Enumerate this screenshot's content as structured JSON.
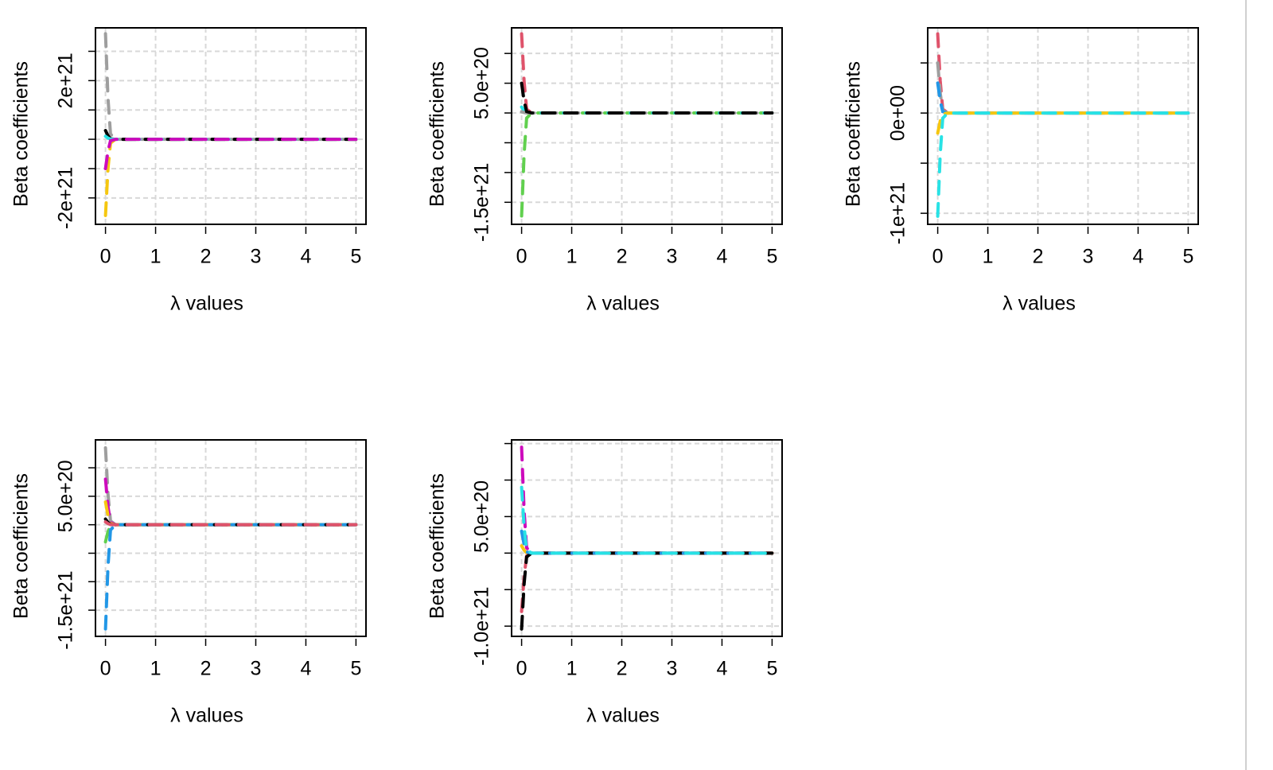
{
  "chart_data": [
    {
      "type": "line",
      "xlabel": "λ values",
      "ylabel": "Beta coefficients",
      "x": [
        0,
        0.05,
        0.1,
        0.2,
        5
      ],
      "xlim": [
        -0.2,
        5.2
      ],
      "xticks": [
        0,
        1,
        2,
        3,
        4,
        5
      ],
      "ylim": [
        -2.9e+21,
        3.8e+21
      ],
      "yticks": [
        {
          "value": -2e+21,
          "label": "-2e+21"
        },
        {
          "value": -1e+21,
          "label": null
        },
        {
          "value": 0,
          "label": null
        },
        {
          "value": 1e+21,
          "label": null
        },
        {
          "value": 2e+21,
          "label": "2e+21"
        },
        {
          "value": 3e+21,
          "label": null
        }
      ],
      "grid": true,
      "series": [
        {
          "color": "#9E9E9E",
          "values": [
            3.6e+21,
            1.4e+21,
            1.8e+20,
            0,
            0
          ]
        },
        {
          "color": "#F5C710",
          "values": [
            -2.6e+21,
            -1e+21,
            -1.3e+20,
            0,
            0
          ]
        },
        {
          "color": "#000000",
          "values": [
            3e+20,
            1.2e+20,
            1.5e+19,
            0,
            0
          ]
        },
        {
          "color": "#28E2E5",
          "values": [
            1e+20,
            4e+19,
            5e+18,
            0,
            0
          ]
        },
        {
          "color": "#CD0BBC",
          "values": [
            -1e+21,
            -4e+20,
            -5e+19,
            0,
            0
          ]
        }
      ]
    },
    {
      "type": "line",
      "xlabel": "λ values",
      "ylabel": "Beta coefficients",
      "x": [
        0,
        0.05,
        0.1,
        0.2,
        5
      ],
      "xlim": [
        -0.2,
        5.2
      ],
      "xticks": [
        0,
        1,
        2,
        3,
        4,
        5
      ],
      "ylim": [
        -1.87e+21,
        1.43e+21
      ],
      "yticks": [
        {
          "value": -1.5e+21,
          "label": "-1.5e+21"
        },
        {
          "value": -1e+21,
          "label": null
        },
        {
          "value": -5e+20,
          "label": null
        },
        {
          "value": 0,
          "label": null
        },
        {
          "value": 5e+20,
          "label": "5.0e+20"
        },
        {
          "value": 1e+21,
          "label": null
        }
      ],
      "grid": true,
      "series": [
        {
          "color": "#DF536B",
          "values": [
            1.33e+21,
            5.3e+20,
            6.6e+19,
            0,
            0
          ]
        },
        {
          "color": "#61D04F",
          "values": [
            -1.73e+21,
            -6.9e+20,
            -8.6e+19,
            0,
            0
          ]
        },
        {
          "color": "#28E2E5",
          "values": [
            1e+20,
            4e+19,
            5e+18,
            0,
            0
          ]
        },
        {
          "color": "#9E9E9E",
          "values": [
            2e+19,
            8e+18,
            1e+18,
            0,
            0
          ]
        },
        {
          "color": "#000000",
          "values": [
            5e+20,
            2e+20,
            2.5e+19,
            0,
            0
          ]
        }
      ]
    },
    {
      "type": "line",
      "xlabel": "λ values",
      "ylabel": "Beta coefficients",
      "x": [
        0,
        0.05,
        0.1,
        0.2,
        5
      ],
      "xlim": [
        -0.2,
        5.2
      ],
      "xticks": [
        0,
        1,
        2,
        3,
        4,
        5
      ],
      "ylim": [
        -1.11e+21,
        8.5e+20
      ],
      "yticks": [
        {
          "value": -1e+21,
          "label": "-1e+21"
        },
        {
          "value": -5e+20,
          "label": null
        },
        {
          "value": 0,
          "label": "0e+00"
        },
        {
          "value": 5e+20,
          "label": null
        }
      ],
      "grid": true,
      "series": [
        {
          "color": "#DF536B",
          "values": [
            7.9e+20,
            3.2e+20,
            4e+19,
            0,
            0
          ]
        },
        {
          "color": "#9E9E9E",
          "values": [
            5e+20,
            2e+20,
            2.5e+19,
            0,
            0
          ]
        },
        {
          "color": "#2297E6",
          "values": [
            3e+20,
            1.2e+20,
            1.5e+19,
            0,
            0
          ]
        },
        {
          "color": "#F5C710",
          "values": [
            -2e+20,
            -8e+19,
            -1e+19,
            0,
            0
          ]
        },
        {
          "color": "#28E2E5",
          "values": [
            -1.03e+21,
            -4.1e+20,
            -5.2e+19,
            0,
            0
          ]
        }
      ]
    },
    {
      "type": "line",
      "xlabel": "λ values",
      "ylabel": "Beta coefficients",
      "x": [
        0,
        0.05,
        0.1,
        0.2,
        5
      ],
      "xlim": [
        -0.2,
        5.2
      ],
      "xticks": [
        0,
        1,
        2,
        3,
        4,
        5
      ],
      "ylim": [
        -1.96e+21,
        1.49e+21
      ],
      "yticks": [
        {
          "value": -1.5e+21,
          "label": "-1.5e+21"
        },
        {
          "value": -1e+21,
          "label": null
        },
        {
          "value": -5e+20,
          "label": null
        },
        {
          "value": 0,
          "label": null
        },
        {
          "value": 5e+20,
          "label": "5.0e+20"
        },
        {
          "value": 1e+21,
          "label": null
        }
      ],
      "grid": true,
      "series": [
        {
          "color": "#9E9E9E",
          "values": [
            1.35e+21,
            5.4e+20,
            6.8e+19,
            0,
            0
          ]
        },
        {
          "color": "#CD0BBC",
          "values": [
            8e+20,
            3.2e+20,
            4e+19,
            0,
            0
          ]
        },
        {
          "color": "#F5C710",
          "values": [
            4e+20,
            1.6e+20,
            2e+19,
            0,
            0
          ]
        },
        {
          "color": "#61D04F",
          "values": [
            -3e+20,
            -1.2e+20,
            -1.5e+19,
            0,
            0
          ]
        },
        {
          "color": "#2297E6",
          "values": [
            -1.83e+21,
            -7.3e+20,
            -9.2e+19,
            0,
            0
          ]
        },
        {
          "color": "#000000",
          "values": [
            1e+20,
            4e+19,
            5e+18,
            0,
            0
          ]
        },
        {
          "color": "#DF536B",
          "values": [
            5e+19,
            2e+19,
            2.5e+18,
            0,
            0
          ]
        }
      ]
    },
    {
      "type": "line",
      "xlabel": "λ values",
      "ylabel": "Beta coefficients",
      "x": [
        0,
        0.05,
        0.1,
        0.2,
        5
      ],
      "xlim": [
        -0.2,
        5.2
      ],
      "xticks": [
        0,
        1,
        2,
        3,
        4,
        5
      ],
      "ylim": [
        -1.14e+21,
        1.55e+21
      ],
      "yticks": [
        {
          "value": -1e+21,
          "label": "-1.0e+21"
        },
        {
          "value": -5e+20,
          "label": null
        },
        {
          "value": 0,
          "label": null
        },
        {
          "value": 5e+20,
          "label": "5.0e+20"
        },
        {
          "value": 1e+21,
          "label": null
        },
        {
          "value": 1.5e+21,
          "label": null
        }
      ],
      "grid": true,
      "series": [
        {
          "color": "#CD0BBC",
          "values": [
            1.45e+21,
            5.8e+20,
            7.3e+19,
            0,
            0
          ]
        },
        {
          "color": "#F5C710",
          "values": [
            1e+20,
            4e+19,
            5e+18,
            0,
            0
          ]
        },
        {
          "color": "#DF536B",
          "values": [
            -8e+20,
            -3.2e+20,
            -4e+19,
            0,
            0
          ]
        },
        {
          "color": "#000000",
          "values": [
            -1.04e+21,
            -4.2e+20,
            -5.2e+19,
            0,
            0
          ]
        },
        {
          "color": "#2297E6",
          "values": [
            3e+20,
            1.2e+20,
            1.5e+19,
            0,
            0
          ]
        },
        {
          "color": "#28E2E5",
          "values": [
            9e+20,
            3.6e+20,
            4.5e+19,
            0,
            0
          ]
        }
      ]
    }
  ]
}
